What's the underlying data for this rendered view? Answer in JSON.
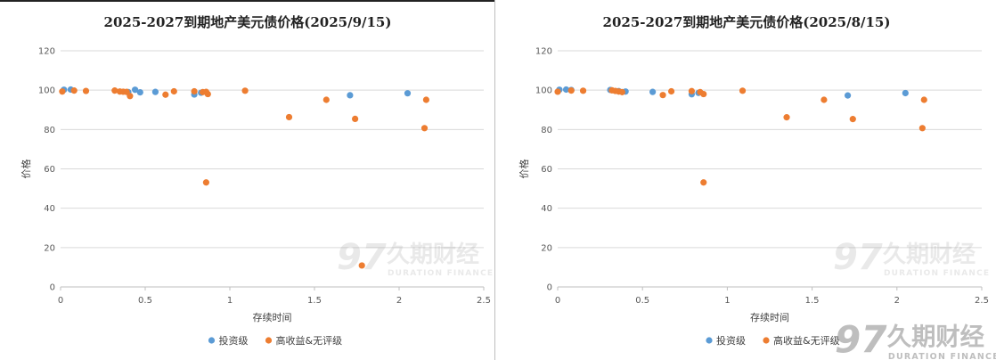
{
  "brand": {
    "name_cn": "久期财经",
    "name_en": "DURATION FINANCE",
    "logo_glyph": "97"
  },
  "colors": {
    "investment_grade": "#5b9bd5",
    "high_yield": "#ed7d31",
    "grid": "#d9d9d9",
    "axis": "#bfbfbf"
  },
  "chart_data": [
    {
      "type": "scatter",
      "title": "2025-2027到期地产美元债价格(2025/9/15)",
      "xlabel": "存续时间",
      "ylabel": "价格",
      "xlim": [
        0,
        2.5
      ],
      "ylim": [
        0,
        120
      ],
      "xticks": [
        "0",
        "0.5",
        "1",
        "1.5",
        "2",
        "2.5"
      ],
      "yticks": [
        "0",
        "20",
        "40",
        "60",
        "80",
        "100",
        "120"
      ],
      "grid": "horizontal",
      "legend": "bottom",
      "series": [
        {
          "name": "投资级",
          "color": "#5b9bd5",
          "points": [
            [
              0.02,
              100.2
            ],
            [
              0.06,
              100.3
            ],
            [
              0.4,
              99.0
            ],
            [
              0.44,
              100.2
            ],
            [
              0.47,
              98.9
            ],
            [
              0.56,
              99.1
            ],
            [
              0.79,
              97.8
            ],
            [
              0.83,
              98.7
            ],
            [
              1.71,
              97.4
            ],
            [
              2.05,
              98.4
            ]
          ]
        },
        {
          "name": "高收益&无评级",
          "color": "#ed7d31",
          "points": [
            [
              0.01,
              99.3
            ],
            [
              0.08,
              99.8
            ],
            [
              0.15,
              99.6
            ],
            [
              0.32,
              99.8
            ],
            [
              0.35,
              99.3
            ],
            [
              0.37,
              99.2
            ],
            [
              0.39,
              99.1
            ],
            [
              0.41,
              97.0
            ],
            [
              0.62,
              97.7
            ],
            [
              0.67,
              99.4
            ],
            [
              0.79,
              99.4
            ],
            [
              0.84,
              99.0
            ],
            [
              0.86,
              99.1
            ],
            [
              0.87,
              98.0
            ],
            [
              0.86,
              53.1
            ],
            [
              1.09,
              99.7
            ],
            [
              1.35,
              86.3
            ],
            [
              1.57,
              95.1
            ],
            [
              1.74,
              85.4
            ],
            [
              1.78,
              10.9
            ],
            [
              2.15,
              80.7
            ],
            [
              2.16,
              95.1
            ]
          ]
        }
      ]
    },
    {
      "type": "scatter",
      "title": "2025-2027到期地产美元债价格(2025/8/15)",
      "xlabel": "存续时间",
      "ylabel": "价格",
      "xlim": [
        0,
        2.5
      ],
      "ylim": [
        0,
        120
      ],
      "xticks": [
        "0",
        "0.5",
        "1",
        "1.5",
        "2",
        "2.5"
      ],
      "yticks": [
        "0",
        "20",
        "40",
        "60",
        "80",
        "100",
        "120"
      ],
      "grid": "horizontal",
      "legend": "bottom",
      "series": [
        {
          "name": "投资级",
          "color": "#5b9bd5",
          "points": [
            [
              0.01,
              100.2
            ],
            [
              0.05,
              100.3
            ],
            [
              0.08,
              100.1
            ],
            [
              0.31,
              100.1
            ],
            [
              0.36,
              99.5
            ],
            [
              0.4,
              99.3
            ],
            [
              0.56,
              99.1
            ],
            [
              0.79,
              97.9
            ],
            [
              0.83,
              98.6
            ],
            [
              1.71,
              97.3
            ],
            [
              2.05,
              98.5
            ]
          ]
        },
        {
          "name": "高收益&无评级",
          "color": "#ed7d31",
          "points": [
            [
              0.0,
              99.2
            ],
            [
              0.08,
              99.8
            ],
            [
              0.15,
              99.7
            ],
            [
              0.32,
              99.9
            ],
            [
              0.34,
              99.6
            ],
            [
              0.36,
              99.3
            ],
            [
              0.38,
              99.0
            ],
            [
              0.62,
              97.5
            ],
            [
              0.67,
              99.4
            ],
            [
              0.79,
              99.5
            ],
            [
              0.84,
              99.0
            ],
            [
              0.86,
              98.0
            ],
            [
              0.86,
              53.1
            ],
            [
              1.09,
              99.7
            ],
            [
              1.35,
              86.2
            ],
            [
              1.57,
              95.1
            ],
            [
              1.74,
              85.3
            ],
            [
              2.15,
              80.7
            ],
            [
              2.16,
              95.1
            ]
          ]
        }
      ]
    }
  ]
}
